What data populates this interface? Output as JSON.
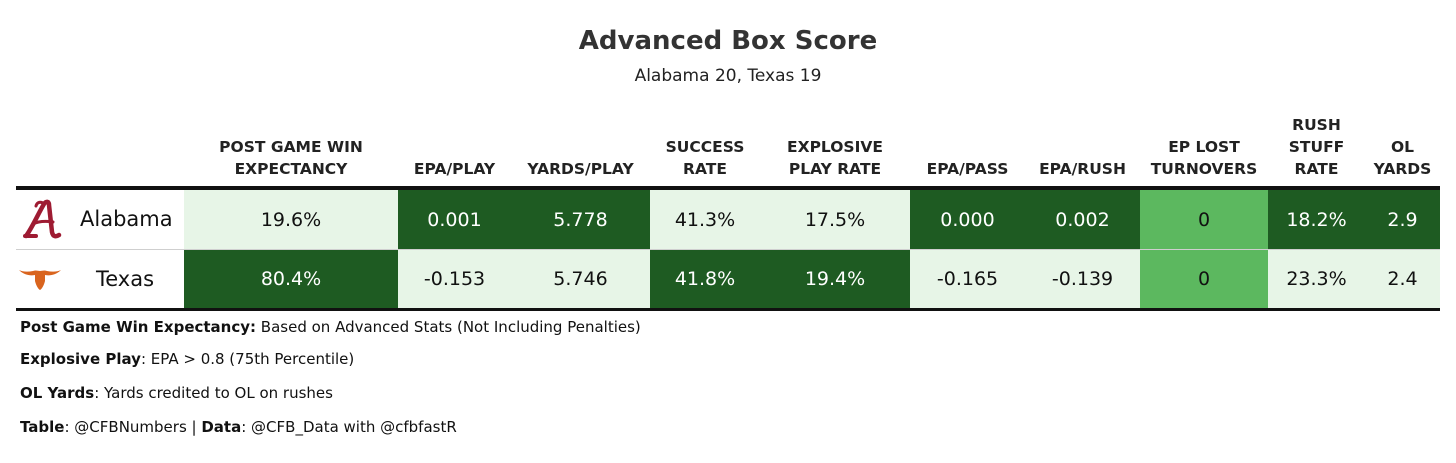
{
  "title": "Advanced Box Score",
  "subtitle": "Alabama 20, Texas 19",
  "colors": {
    "dark": "#1e5b22",
    "medium": "#5cb85f",
    "light": "#e7f5e7"
  },
  "chart_data": {
    "type": "table",
    "columns": [
      {
        "label_lines": [
          "POST GAME WIN",
          "EXPECTANCY"
        ]
      },
      {
        "label_lines": [
          "EPA/PLAY"
        ]
      },
      {
        "label_lines": [
          "YARDS/PLAY"
        ]
      },
      {
        "label_lines": [
          "SUCCESS",
          "RATE"
        ]
      },
      {
        "label_lines": [
          "EXPLOSIVE",
          "PLAY RATE"
        ]
      },
      {
        "label_lines": [
          "EPA/PASS"
        ]
      },
      {
        "label_lines": [
          "EPA/RUSH"
        ]
      },
      {
        "label_lines": [
          "EP LOST",
          "TURNOVERS"
        ]
      },
      {
        "label_lines": [
          "RUSH",
          "STUFF",
          "RATE"
        ]
      },
      {
        "label_lines": [
          "OL",
          "YARDS"
        ]
      }
    ],
    "rows": [
      {
        "team": "Alabama",
        "logo_icon": "alabama-script-a-icon",
        "values": [
          "19.6%",
          "0.001",
          "5.778",
          "41.3%",
          "17.5%",
          "0.000",
          "0.002",
          "0",
          "18.2%",
          "2.9"
        ],
        "shades": [
          "light",
          "dark",
          "dark",
          "light",
          "light",
          "dark",
          "dark",
          "medium",
          "dark",
          "dark"
        ]
      },
      {
        "team": "Texas",
        "logo_icon": "texas-longhorn-icon",
        "values": [
          "80.4%",
          "-0.153",
          "5.746",
          "41.8%",
          "19.4%",
          "-0.165",
          "-0.139",
          "0",
          "23.3%",
          "2.4"
        ],
        "shades": [
          "dark",
          "light",
          "light",
          "dark",
          "dark",
          "light",
          "light",
          "medium",
          "light",
          "light"
        ]
      }
    ]
  },
  "footnotes": [
    {
      "label": "Post Game Win Expectancy:",
      "text": " Based on Advanced Stats (Not Including Penalties)"
    },
    {
      "label": "Explosive Play",
      "text": ": EPA > 0.8 (75th Percentile)"
    },
    {
      "label": "OL Yards",
      "text": ": Yards credited to OL on rushes"
    }
  ],
  "credit": {
    "table_label": "Table",
    "table_text": ": @CFBNumbers | ",
    "data_label": "Data",
    "data_text": ": @CFB_Data with @cfbfastR"
  }
}
